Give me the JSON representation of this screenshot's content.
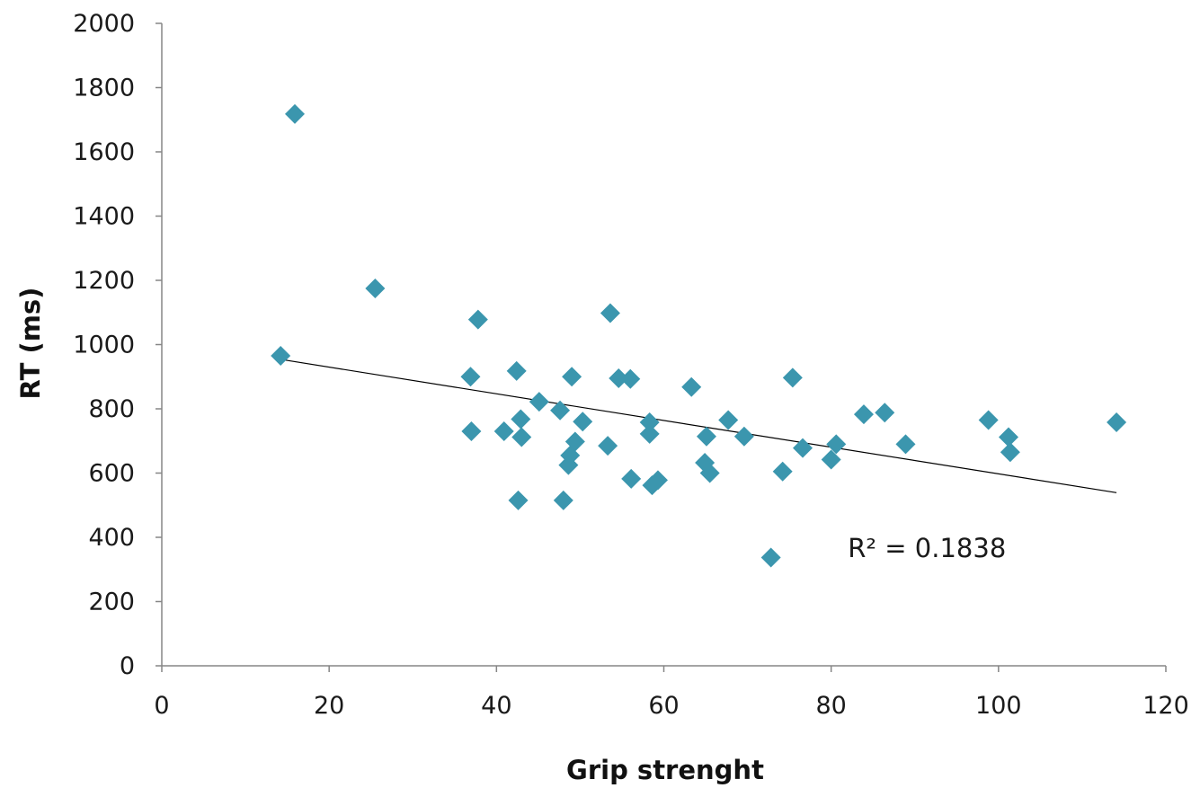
{
  "chart_data": {
    "type": "scatter",
    "title": "",
    "xlabel": "Grip strenght",
    "ylabel": "RT (ms)",
    "xlim": [
      0,
      120
    ],
    "ylim": [
      0,
      2000
    ],
    "x_ticks": [
      0,
      20,
      40,
      60,
      80,
      100,
      120
    ],
    "y_ticks": [
      0,
      200,
      400,
      600,
      800,
      1000,
      1200,
      1400,
      1600,
      1800,
      2000
    ],
    "grid": false,
    "legend": "none",
    "marker_color": "#3B96AE",
    "trendline_color": "#000000",
    "series": [
      {
        "points": [
          [
            14.2,
            965
          ],
          [
            15.9,
            1718
          ],
          [
            25.5,
            1175
          ],
          [
            36.9,
            900
          ],
          [
            37.0,
            730
          ],
          [
            37.8,
            1078
          ],
          [
            40.9,
            730
          ],
          [
            42.4,
            918
          ],
          [
            42.6,
            515
          ],
          [
            42.9,
            768
          ],
          [
            43.0,
            712
          ],
          [
            45.1,
            822
          ],
          [
            47.6,
            795
          ],
          [
            48.0,
            515
          ],
          [
            48.6,
            625
          ],
          [
            48.8,
            655
          ],
          [
            49.0,
            900
          ],
          [
            49.4,
            698
          ],
          [
            50.3,
            760
          ],
          [
            53.3,
            685
          ],
          [
            53.6,
            1098
          ],
          [
            54.6,
            895
          ],
          [
            56.0,
            893
          ],
          [
            56.1,
            582
          ],
          [
            58.3,
            758
          ],
          [
            58.3,
            722
          ],
          [
            58.6,
            562
          ],
          [
            59.3,
            578
          ],
          [
            63.3,
            868
          ],
          [
            64.9,
            632
          ],
          [
            65.1,
            714
          ],
          [
            65.5,
            600
          ],
          [
            67.7,
            765
          ],
          [
            69.6,
            714
          ],
          [
            72.8,
            337
          ],
          [
            74.2,
            605
          ],
          [
            75.4,
            897
          ],
          [
            76.6,
            678
          ],
          [
            80.0,
            642
          ],
          [
            80.6,
            690
          ],
          [
            83.9,
            783
          ],
          [
            86.4,
            788
          ],
          [
            88.9,
            690
          ],
          [
            98.8,
            765
          ],
          [
            101.2,
            712
          ],
          [
            101.4,
            665
          ],
          [
            114.1,
            758
          ]
        ]
      }
    ],
    "trendline": {
      "x": [
        14.2,
        114.1
      ],
      "y": [
        954,
        539
      ]
    },
    "annotations": [
      {
        "text": "R² = 0.1838",
        "x": 82,
        "y": 400
      }
    ]
  }
}
